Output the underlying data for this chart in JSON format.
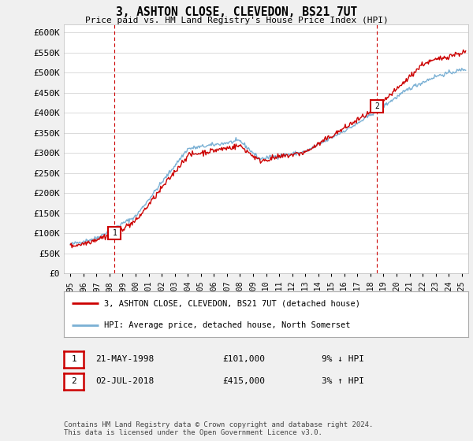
{
  "title": "3, ASHTON CLOSE, CLEVEDON, BS21 7UT",
  "subtitle": "Price paid vs. HM Land Registry's House Price Index (HPI)",
  "ylabel_ticks": [
    "£0",
    "£50K",
    "£100K",
    "£150K",
    "£200K",
    "£250K",
    "£300K",
    "£350K",
    "£400K",
    "£450K",
    "£500K",
    "£550K",
    "£600K"
  ],
  "ytick_values": [
    0,
    50000,
    100000,
    150000,
    200000,
    250000,
    300000,
    350000,
    400000,
    450000,
    500000,
    550000,
    600000
  ],
  "ylim": [
    0,
    620000
  ],
  "xlim_start": 1994.5,
  "xlim_end": 2025.5,
  "sale1_x": 1998.39,
  "sale1_y": 101000,
  "sale1_label": "1",
  "sale1_date": "21-MAY-1998",
  "sale1_price": "£101,000",
  "sale1_hpi": "9% ↓ HPI",
  "sale2_x": 2018.5,
  "sale2_y": 415000,
  "sale2_label": "2",
  "sale2_date": "02-JUL-2018",
  "sale2_price": "£415,000",
  "sale2_hpi": "3% ↑ HPI",
  "legend_line1": "3, ASHTON CLOSE, CLEVEDON, BS21 7UT (detached house)",
  "legend_line2": "HPI: Average price, detached house, North Somerset",
  "footer": "Contains HM Land Registry data © Crown copyright and database right 2024.\nThis data is licensed under the Open Government Licence v3.0.",
  "line_color_red": "#cc0000",
  "line_color_blue": "#7ab0d4",
  "background_color": "#f0f0f0",
  "plot_bg_color": "#ffffff",
  "grid_color": "#cccccc",
  "sale_vline_color": "#cc0000",
  "box_edge_color": "#cc0000",
  "xtick_years": [
    1995,
    1996,
    1997,
    1998,
    1999,
    2000,
    2001,
    2002,
    2003,
    2004,
    2005,
    2006,
    2007,
    2008,
    2009,
    2010,
    2011,
    2012,
    2013,
    2014,
    2015,
    2016,
    2017,
    2018,
    2019,
    2020,
    2021,
    2022,
    2023,
    2024,
    2025
  ]
}
